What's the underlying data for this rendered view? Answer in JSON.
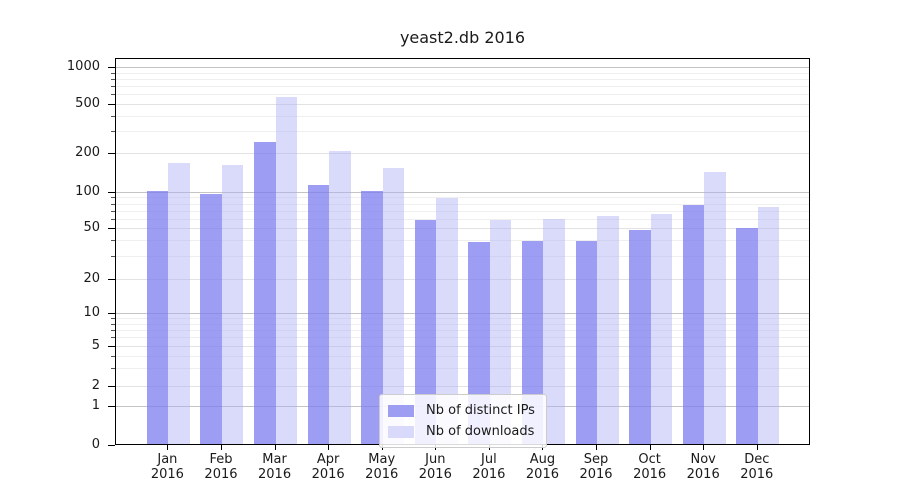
{
  "title": "yeast2.db 2016",
  "chart_data": {
    "type": "bar",
    "title": "yeast2.db 2016",
    "categories": [
      "Jan 2016",
      "Feb 2016",
      "Mar 2016",
      "Apr 2016",
      "May 2016",
      "Jun 2016",
      "Jul 2016",
      "Aug 2016",
      "Sep 2016",
      "Oct 2016",
      "Nov 2016",
      "Dec 2016"
    ],
    "series": [
      {
        "name": "Nb of distinct IPs",
        "color": "#9d9df2",
        "fill": "rgba(124,124,240,0.75)",
        "values": [
          100,
          95,
          240,
          112,
          100,
          57,
          38,
          39,
          39,
          47,
          77,
          49
        ]
      },
      {
        "name": "Nb of downloads",
        "color": "#d9d9fb",
        "fill": "rgba(170,170,247,0.44)",
        "values": [
          165,
          160,
          560,
          205,
          150,
          88,
          57,
          58,
          62,
          64,
          140,
          74
        ]
      }
    ],
    "xlabel": "",
    "ylabel": "",
    "yscale": "symlog",
    "ylim": [
      0,
      1200
    ],
    "ytick_values": [
      0,
      1,
      2,
      5,
      10,
      20,
      50,
      100,
      200,
      500,
      1000
    ],
    "ytick_labels": [
      "0",
      "1",
      "2",
      "5",
      "10",
      "20",
      "50",
      "100",
      "200",
      "500",
      "1000"
    ],
    "grid": true,
    "legend": {
      "position": "lower-center-inside",
      "items": [
        "Nb of distinct IPs",
        "Nb of downloads"
      ]
    }
  }
}
